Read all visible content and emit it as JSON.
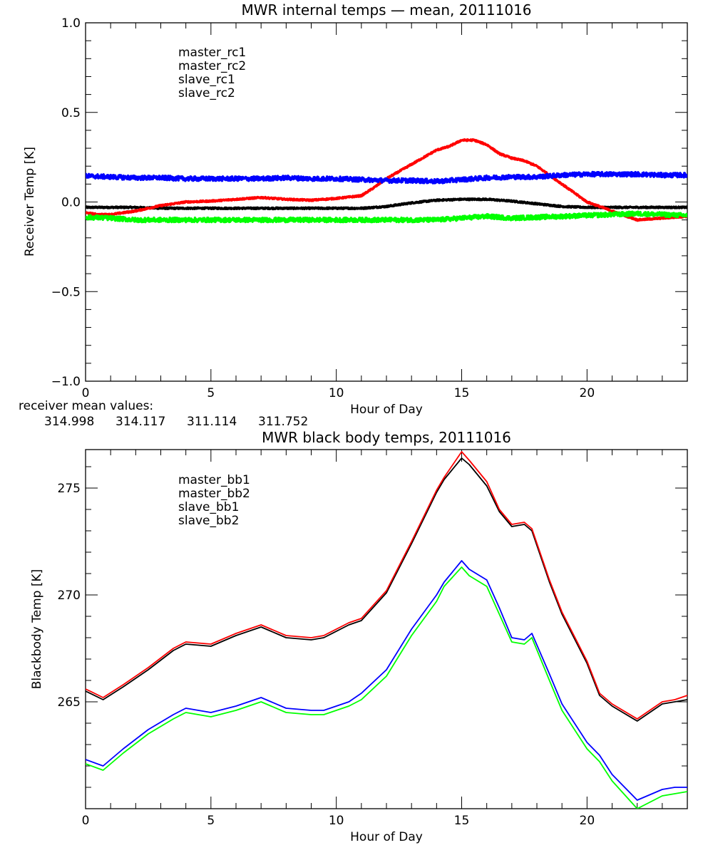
{
  "chart_data": [
    {
      "type": "line",
      "title": "MWR internal temps — mean, 20111016",
      "xlabel": "Hour of Day",
      "ylabel": "Receiver Temp [K]",
      "xlim": [
        0,
        24
      ],
      "ylim": [
        -1.0,
        1.0
      ],
      "xticks": [
        0,
        5,
        10,
        15,
        20
      ],
      "xtick_labels": [
        "0",
        "5",
        "10",
        "15",
        "20"
      ],
      "yticks": [
        -1.0,
        -0.5,
        0.0,
        0.5,
        1.0
      ],
      "ytick_labels": [
        "−1.0",
        "−0.5",
        "0.0",
        "0.5",
        "1.0"
      ],
      "x_minor_step": 1,
      "y_minor_step": 0.1,
      "grid": false,
      "legend_position": "top-left",
      "noisy": true,
      "series": [
        {
          "name": "master_rc1",
          "color": "#000000",
          "x": [
            0,
            1,
            2,
            3,
            4,
            5,
            6,
            7,
            8,
            9,
            10,
            11,
            12,
            13,
            14,
            15,
            16,
            17,
            18,
            19,
            20,
            21,
            22,
            23,
            24
          ],
          "values": [
            -0.03,
            -0.03,
            -0.03,
            -0.035,
            -0.035,
            -0.035,
            -0.035,
            -0.035,
            -0.035,
            -0.035,
            -0.035,
            -0.035,
            -0.025,
            -0.005,
            0.01,
            0.015,
            0.015,
            0.005,
            -0.01,
            -0.025,
            -0.03,
            -0.03,
            -0.03,
            -0.03,
            -0.03
          ]
        },
        {
          "name": "master_rc2",
          "color": "#ff0000",
          "x": [
            0,
            0.5,
            1,
            2,
            3,
            4,
            5,
            6,
            7,
            8,
            9,
            10,
            11,
            11.5,
            12,
            12.5,
            13,
            13.5,
            14,
            14.5,
            15,
            15.5,
            16,
            16.5,
            17,
            17.5,
            18,
            18.5,
            19,
            19.5,
            20,
            21,
            22,
            23,
            24
          ],
          "values": [
            -0.06,
            -0.07,
            -0.07,
            -0.05,
            -0.02,
            0.0,
            0.005,
            0.015,
            0.025,
            0.015,
            0.01,
            0.02,
            0.035,
            0.08,
            0.13,
            0.17,
            0.21,
            0.25,
            0.29,
            0.31,
            0.345,
            0.345,
            0.32,
            0.27,
            0.245,
            0.23,
            0.2,
            0.15,
            0.1,
            0.05,
            0.0,
            -0.05,
            -0.1,
            -0.09,
            -0.08
          ]
        },
        {
          "name": "slave_rc1",
          "color": "#0000ff",
          "x": [
            0,
            1,
            2,
            3,
            4,
            5,
            6,
            7,
            8,
            9,
            10,
            11,
            12,
            13,
            14,
            15,
            16,
            17,
            18,
            19,
            20,
            21,
            22,
            23,
            24
          ],
          "values": [
            0.145,
            0.14,
            0.135,
            0.135,
            0.13,
            0.13,
            0.13,
            0.13,
            0.135,
            0.13,
            0.13,
            0.125,
            0.12,
            0.12,
            0.115,
            0.125,
            0.135,
            0.14,
            0.14,
            0.15,
            0.155,
            0.155,
            0.155,
            0.15,
            0.15
          ]
        },
        {
          "name": "slave_rc2",
          "color": "#00ff00",
          "x": [
            0,
            1,
            2,
            3,
            4,
            5,
            6,
            7,
            8,
            9,
            10,
            11,
            12,
            13,
            14,
            15,
            16,
            17,
            18,
            19,
            20,
            21,
            22,
            23,
            24
          ],
          "values": [
            -0.085,
            -0.09,
            -0.1,
            -0.1,
            -0.1,
            -0.1,
            -0.1,
            -0.1,
            -0.1,
            -0.1,
            -0.1,
            -0.1,
            -0.1,
            -0.1,
            -0.1,
            -0.09,
            -0.08,
            -0.09,
            -0.085,
            -0.08,
            -0.075,
            -0.07,
            -0.065,
            -0.07,
            -0.075
          ]
        }
      ],
      "annotation": {
        "label": "receiver mean values:",
        "values": [
          {
            "text": "314.998",
            "color": "#000000"
          },
          {
            "text": "314.117",
            "color": "#ff0000"
          },
          {
            "text": "311.114",
            "color": "#0000ff"
          },
          {
            "text": "311.752",
            "color": "#00ff00"
          }
        ]
      }
    },
    {
      "type": "line",
      "title": "MWR black body temps, 20111016",
      "xlabel": "Hour of Day",
      "ylabel": "Blackbody Temp [K]",
      "xlim": [
        0,
        24
      ],
      "ylim": [
        260.0,
        276.8
      ],
      "xticks": [
        0,
        5,
        10,
        15,
        20
      ],
      "xtick_labels": [
        "0",
        "5",
        "10",
        "15",
        "20"
      ],
      "yticks": [
        265,
        270,
        275
      ],
      "ytick_labels": [
        "265",
        "270",
        "275"
      ],
      "x_minor_step": 1,
      "y_minor_step": 1,
      "grid": false,
      "legend_position": "top-left",
      "noisy": false,
      "series": [
        {
          "name": "master_bb1",
          "color": "#000000",
          "x": [
            0,
            0.7,
            1.5,
            2.5,
            3.5,
            4,
            5,
            6,
            7,
            8,
            9,
            9.5,
            10.5,
            11,
            12,
            13,
            14,
            14.3,
            15,
            15.3,
            16,
            16.5,
            17,
            17.5,
            17.8,
            18.5,
            19,
            20,
            20.5,
            21,
            22,
            23,
            23.5,
            24
          ],
          "values": [
            265.5,
            265.1,
            265.7,
            266.5,
            267.4,
            267.7,
            267.6,
            268.1,
            268.5,
            268.0,
            267.9,
            268.0,
            268.6,
            268.8,
            270.1,
            272.4,
            274.8,
            275.4,
            276.4,
            276.1,
            275.1,
            273.9,
            273.2,
            273.3,
            273.0,
            270.6,
            269.1,
            266.8,
            265.3,
            264.8,
            264.1,
            264.9,
            265.0,
            265.1
          ]
        },
        {
          "name": "master_bb2",
          "color": "#ff0000",
          "x": [
            0,
            0.7,
            1.5,
            2.5,
            3.5,
            4,
            5,
            6,
            7,
            8,
            9,
            9.5,
            10.5,
            11,
            12,
            13,
            14,
            14.3,
            15,
            15.3,
            16,
            16.5,
            17,
            17.5,
            17.8,
            18.5,
            19,
            20,
            20.5,
            21,
            22,
            23,
            23.5,
            24
          ],
          "values": [
            265.6,
            265.2,
            265.8,
            266.6,
            267.5,
            267.8,
            267.7,
            268.2,
            268.6,
            268.1,
            268.0,
            268.1,
            268.7,
            268.9,
            270.2,
            272.5,
            274.9,
            275.5,
            276.7,
            276.3,
            275.3,
            274.0,
            273.3,
            273.4,
            273.1,
            270.7,
            269.2,
            266.9,
            265.4,
            264.9,
            264.2,
            265.0,
            265.1,
            265.3
          ]
        },
        {
          "name": "slave_bb1",
          "color": "#0000ff",
          "x": [
            0,
            0.7,
            1.5,
            2.5,
            3.5,
            4,
            5,
            6,
            7,
            8,
            9,
            9.5,
            10.5,
            11,
            12,
            13,
            14,
            14.3,
            15,
            15.3,
            16,
            16.5,
            17,
            17.5,
            17.8,
            18.5,
            19,
            20,
            20.5,
            21,
            22,
            23,
            23.5,
            24
          ],
          "values": [
            262.3,
            262.0,
            262.8,
            263.7,
            264.4,
            264.7,
            264.5,
            264.8,
            265.2,
            264.7,
            264.6,
            264.6,
            265.0,
            265.4,
            266.5,
            268.4,
            270.0,
            270.6,
            271.6,
            271.2,
            270.7,
            269.4,
            268.0,
            267.9,
            268.2,
            266.3,
            264.9,
            263.1,
            262.5,
            261.6,
            260.4,
            260.9,
            261.0,
            261.0
          ]
        },
        {
          "name": "slave_bb2",
          "color": "#00ff00",
          "x": [
            0,
            0.7,
            1.5,
            2.5,
            3.5,
            4,
            5,
            6,
            7,
            8,
            9,
            9.5,
            10.5,
            11,
            12,
            13,
            14,
            14.3,
            15,
            15.3,
            16,
            16.5,
            17,
            17.5,
            17.8,
            18.5,
            19,
            20,
            20.5,
            21,
            22,
            23,
            23.5,
            24
          ],
          "values": [
            262.1,
            261.8,
            262.6,
            263.5,
            264.2,
            264.5,
            264.3,
            264.6,
            265.0,
            264.5,
            264.4,
            264.4,
            264.8,
            265.1,
            266.2,
            268.1,
            269.7,
            270.4,
            271.3,
            270.9,
            270.4,
            269.1,
            267.8,
            267.7,
            268.0,
            266.0,
            264.6,
            262.8,
            262.2,
            261.3,
            260.0,
            260.6,
            260.7,
            260.8
          ]
        }
      ]
    }
  ]
}
